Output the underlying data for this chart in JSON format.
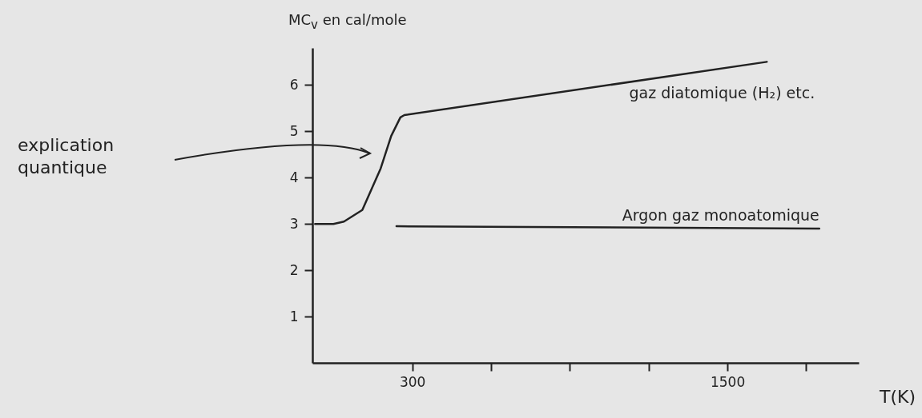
{
  "chart_data": {
    "type": "line",
    "xlabel": "T(K)",
    "ylabel": "MC$_{v}$ en cal/mole",
    "xlim": [
      -80,
      2000
    ],
    "ylim": [
      0,
      6.8
    ],
    "xticks": [
      {
        "value": 300,
        "label": "300"
      },
      {
        "value": 600,
        "label": null
      },
      {
        "value": 900,
        "label": null
      },
      {
        "value": 1200,
        "label": null
      },
      {
        "value": 1500,
        "label": "1500"
      },
      {
        "value": 1800,
        "label": null
      }
    ],
    "yticks": [
      1,
      2,
      3,
      4,
      5,
      6
    ],
    "grid": false,
    "legend": false,
    "marker": "none",
    "line_style": "solid",
    "series": [
      {
        "name": "gaz diatomique (H₂) etc.",
        "color": "#222222",
        "x": [
          -70,
          0,
          40,
          110,
          145,
          180,
          220,
          255,
          270,
          1650
        ],
        "values": [
          3.0,
          3.0,
          3.05,
          3.3,
          3.75,
          4.2,
          4.9,
          5.3,
          5.35,
          6.5
        ]
      },
      {
        "name": "Argon gaz monoatomique",
        "color": "#222222",
        "x": [
          240,
          1850
        ],
        "values": [
          2.95,
          2.9
        ]
      }
    ],
    "annotations": [
      "explication quantique"
    ]
  }
}
